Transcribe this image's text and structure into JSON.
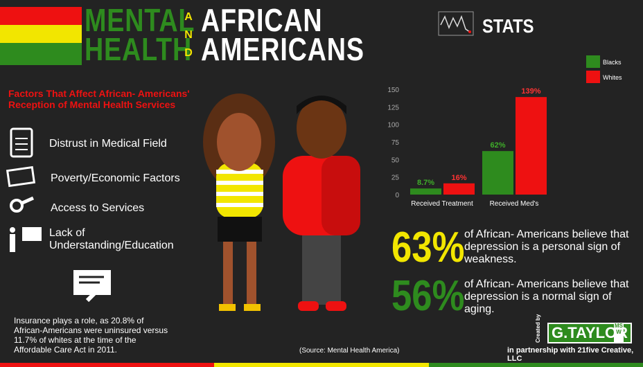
{
  "header": {
    "title_left": [
      "MENTAL",
      "HEALTH"
    ],
    "and": "AND",
    "title_right": [
      "AFRICAN",
      "AMERICANS"
    ],
    "stats_label": "STATS"
  },
  "factors": {
    "heading": "Factors That Affect African- Americans' Reception of Mental Health Services",
    "items": [
      "Distrust in Medical Field",
      "Poverty/Economic Factors",
      "Access to Services",
      "Lack of Understanding/Education"
    ]
  },
  "insurance_note": "Insurance plays a role, as 20.8% of African-Americans were uninsured versus 11.7% of whites at the time of the Affordable Care Act in 2011.",
  "chart_data": {
    "type": "bar",
    "categories": [
      "Received Treatment",
      "Received Med's"
    ],
    "series": [
      {
        "name": "Blacks",
        "color": "#2e8b1e",
        "values": [
          8.7,
          62
        ],
        "value_labels": [
          "8.7%",
          "62%"
        ]
      },
      {
        "name": "Whites",
        "color": "#ee1111",
        "values": [
          16,
          139
        ],
        "value_labels": [
          "16%",
          "139%"
        ]
      }
    ],
    "ylim": [
      0,
      150
    ],
    "yticks": [
      0,
      25,
      50,
      75,
      100,
      125,
      150
    ],
    "grid": false
  },
  "stats": [
    {
      "percent": "63%",
      "text": "of African- Americans believe that depression is a personal sign of weakness."
    },
    {
      "percent": "56%",
      "text": "of African- Americans believe that depression is a normal sign of aging."
    }
  ],
  "footer": {
    "source": "(Source: Mental Health America)",
    "created_by": "Created by",
    "brand": "G.TAYLOR",
    "credential": "MSW",
    "partnership": "in partnership with 21five Creative, LLC"
  }
}
